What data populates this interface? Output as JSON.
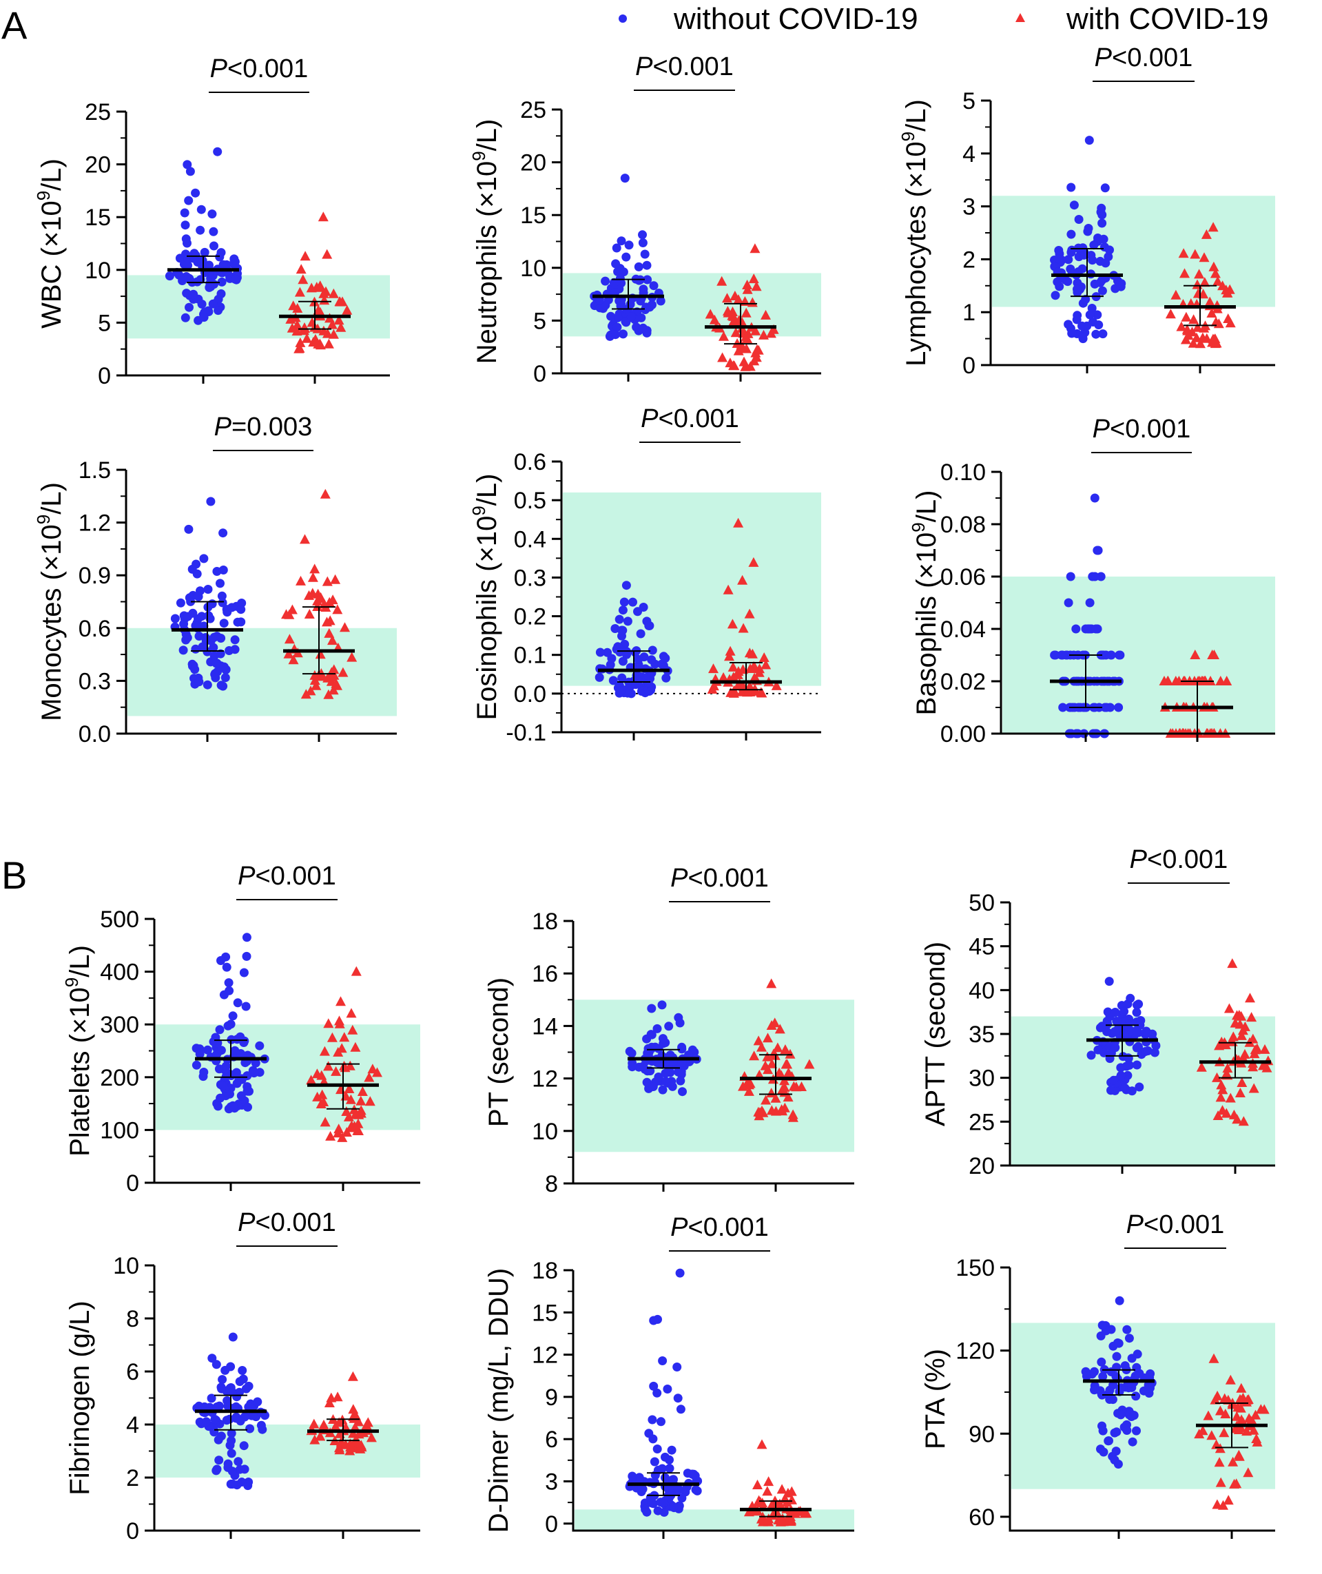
{
  "figure": {
    "panel_labels": [
      "A",
      "B"
    ],
    "legend": [
      {
        "label": "without COVID-19",
        "color": "#2b2bf0",
        "marker": "circle"
      },
      {
        "label": "with COVID-19",
        "color": "#f03030",
        "marker": "triangle"
      }
    ],
    "reference_band_color": "#c8f5e4"
  },
  "chart_data": [
    {
      "type": "scatter",
      "title": "WBC",
      "ylabel": "WBC (×10^9/L)",
      "ylabel_parts": [
        "WBC (×10",
        "9",
        "/L)"
      ],
      "ylim": [
        0,
        25
      ],
      "yticks": [
        0,
        5,
        10,
        15,
        20,
        25
      ],
      "tick_labels": [
        "0",
        "5",
        "10",
        "15",
        "20",
        "25"
      ],
      "reference_range": [
        3.5,
        9.5
      ],
      "p_label": "P",
      "p_value": "<0.001",
      "zero_line": false,
      "groups": [
        {
          "name": "without COVID-19",
          "n": 90,
          "min": 5.2,
          "max": 21.2,
          "median": 10.0,
          "q1": 8.8,
          "q3": 11.3
        },
        {
          "name": "with COVID-19",
          "n": 55,
          "min": 2.5,
          "max": 15.0,
          "median": 5.6,
          "q1": 4.4,
          "q3": 7.0
        }
      ]
    },
    {
      "type": "scatter",
      "title": "Neutrophils",
      "ylabel": "Neutrophils (×10^9/L)",
      "ylabel_parts": [
        "Neutrophils (×10",
        "9",
        "/L)"
      ],
      "ylim": [
        0,
        25
      ],
      "yticks": [
        0,
        5,
        10,
        15,
        20,
        25
      ],
      "tick_labels": [
        "0",
        "5",
        "10",
        "15",
        "20",
        "25"
      ],
      "reference_range": [
        3.5,
        9.5
      ],
      "p_label": "P",
      "p_value": "<0.001",
      "zero_line": false,
      "groups": [
        {
          "name": "without COVID-19",
          "n": 90,
          "min": 3.5,
          "max": 18.5,
          "median": 7.3,
          "q1": 6.1,
          "q3": 8.9
        },
        {
          "name": "with COVID-19",
          "n": 55,
          "min": 0.6,
          "max": 11.8,
          "median": 4.4,
          "q1": 2.8,
          "q3": 6.6
        }
      ]
    },
    {
      "type": "scatter",
      "title": "Lymphocytes",
      "ylabel": "Lymphocytes (×10^9/L)",
      "ylabel_parts": [
        "Lymphocytes (×10",
        "9",
        "/L)"
      ],
      "ylim": [
        0,
        5
      ],
      "yticks": [
        0,
        1,
        2,
        3,
        4,
        5
      ],
      "tick_labels": [
        "0",
        "1",
        "2",
        "3",
        "4",
        "5"
      ],
      "reference_range": [
        1.1,
        3.2
      ],
      "p_label": "P",
      "p_value": "<0.001",
      "zero_line": false,
      "groups": [
        {
          "name": "without COVID-19",
          "n": 90,
          "min": 0.5,
          "max": 4.25,
          "median": 1.7,
          "q1": 1.3,
          "q3": 2.2
        },
        {
          "name": "with COVID-19",
          "n": 55,
          "min": 0.4,
          "max": 2.6,
          "median": 1.1,
          "q1": 0.75,
          "q3": 1.5
        }
      ]
    },
    {
      "type": "scatter",
      "title": "Monocytes",
      "ylabel": "Monocytes (×10^9/L)",
      "ylabel_parts": [
        "Monocytes (×10",
        "9",
        "/L)"
      ],
      "ylim": [
        0,
        1.5
      ],
      "yticks": [
        0,
        0.3,
        0.6,
        0.9,
        1.2,
        1.5
      ],
      "tick_labels": [
        "0.0",
        "0.3",
        "0.6",
        "0.9",
        "1.2",
        "1.5"
      ],
      "reference_range": [
        0.1,
        0.6
      ],
      "p_label": "P",
      "p_value": "=0.003",
      "zero_line": false,
      "groups": [
        {
          "name": "without COVID-19",
          "n": 90,
          "min": 0.27,
          "max": 1.32,
          "median": 0.59,
          "q1": 0.47,
          "q3": 0.75
        },
        {
          "name": "with COVID-19",
          "n": 55,
          "min": 0.22,
          "max": 1.36,
          "median": 0.47,
          "q1": 0.34,
          "q3": 0.72
        }
      ]
    },
    {
      "type": "scatter",
      "title": "Eosinophils",
      "ylabel": "Eosinophils (×10^9/L)",
      "ylabel_parts": [
        "Eosinophils (×10",
        "9",
        "/L)"
      ],
      "ylim": [
        -0.1,
        0.6
      ],
      "yticks": [
        -0.1,
        0,
        0.1,
        0.2,
        0.3,
        0.4,
        0.5,
        0.6
      ],
      "tick_labels": [
        "-0.1",
        "0.0",
        "0.1",
        "0.2",
        "0.3",
        "0.4",
        "0.5",
        "0.6"
      ],
      "reference_range": [
        0.02,
        0.52
      ],
      "p_label": "P",
      "p_value": "<0.001",
      "zero_line": true,
      "groups": [
        {
          "name": "without COVID-19",
          "n": 90,
          "min": 0.0,
          "max": 0.28,
          "median": 0.06,
          "q1": 0.03,
          "q3": 0.11
        },
        {
          "name": "with COVID-19",
          "n": 55,
          "min": 0.0,
          "max": 0.44,
          "median": 0.03,
          "q1": 0.01,
          "q3": 0.08
        }
      ]
    },
    {
      "type": "scatter",
      "title": "Basophils",
      "ylabel": "Basophils (×10^9/L)",
      "ylabel_parts": [
        "Basophils (×10",
        "9",
        "/L)"
      ],
      "ylim": [
        0,
        0.1
      ],
      "yticks": [
        0,
        0.02,
        0.04,
        0.06,
        0.08,
        0.1
      ],
      "tick_labels": [
        "0.00",
        "0.02",
        "0.04",
        "0.06",
        "0.08",
        "0.10"
      ],
      "reference_range": [
        0,
        0.06
      ],
      "p_label": "P",
      "p_value": "<0.001",
      "zero_line": false,
      "groups": [
        {
          "name": "without COVID-19",
          "n": 90,
          "min": 0.0,
          "max": 0.09,
          "median": 0.02,
          "q1": 0.01,
          "q3": 0.03,
          "step": 0.01
        },
        {
          "name": "with COVID-19",
          "n": 55,
          "min": 0.0,
          "max": 0.03,
          "median": 0.01,
          "q1": 0.0,
          "q3": 0.02,
          "step": 0.01
        }
      ]
    },
    {
      "type": "scatter",
      "title": "Platelets",
      "ylabel": "Platelets (×10^9/L)",
      "ylabel_parts": [
        "Platelets (×10",
        "9",
        "/L)"
      ],
      "ylim": [
        0,
        500
      ],
      "yticks": [
        0,
        100,
        200,
        300,
        400,
        500
      ],
      "tick_labels": [
        "0",
        "100",
        "200",
        "300",
        "400",
        "500"
      ],
      "reference_range": [
        100,
        300
      ],
      "p_label": "P",
      "p_value": "<0.001",
      "zero_line": false,
      "groups": [
        {
          "name": "without COVID-19",
          "n": 90,
          "min": 140,
          "max": 465,
          "median": 235,
          "q1": 200,
          "q3": 270
        },
        {
          "name": "with COVID-19",
          "n": 55,
          "min": 85,
          "max": 400,
          "median": 185,
          "q1": 140,
          "q3": 225
        }
      ]
    },
    {
      "type": "scatter",
      "title": "PT",
      "ylabel": "PT (second)",
      "ylabel_parts": [
        "PT (second)",
        "",
        ""
      ],
      "ylim": [
        8,
        18
      ],
      "yticks": [
        8,
        10,
        12,
        14,
        16,
        18
      ],
      "tick_labels": [
        "8",
        "10",
        "12",
        "14",
        "16",
        "18"
      ],
      "reference_range": [
        9.2,
        15.0
      ],
      "p_label": "P",
      "p_value": "<0.001",
      "zero_line": false,
      "groups": [
        {
          "name": "without COVID-19",
          "n": 90,
          "min": 11.5,
          "max": 14.8,
          "median": 12.75,
          "q1": 12.4,
          "q3": 13.1
        },
        {
          "name": "with COVID-19",
          "n": 55,
          "min": 10.5,
          "max": 15.6,
          "median": 12.0,
          "q1": 11.4,
          "q3": 12.9
        }
      ]
    },
    {
      "type": "scatter",
      "title": "APTT",
      "ylabel": "APTT (second)",
      "ylabel_parts": [
        "APTT (second)",
        "",
        ""
      ],
      "ylim": [
        20,
        50
      ],
      "yticks": [
        20,
        25,
        30,
        35,
        40,
        45,
        50
      ],
      "tick_labels": [
        "20",
        "25",
        "30",
        "35",
        "40",
        "45",
        "50"
      ],
      "reference_range": [
        20,
        37
      ],
      "p_label": "P",
      "p_value": "<0.001",
      "zero_line": false,
      "groups": [
        {
          "name": "without COVID-19",
          "n": 90,
          "min": 28.5,
          "max": 41.0,
          "median": 34.3,
          "q1": 32.5,
          "q3": 36.0
        },
        {
          "name": "with COVID-19",
          "n": 55,
          "min": 25.0,
          "max": 43.0,
          "median": 31.8,
          "q1": 30.0,
          "q3": 34.0
        }
      ]
    },
    {
      "type": "scatter",
      "title": "Fibrinogen",
      "ylabel": "Fibrinogen (g/L)",
      "ylabel_parts": [
        "Fibrinogen (g/L)",
        "",
        ""
      ],
      "ylim": [
        0,
        10
      ],
      "yticks": [
        0,
        2,
        4,
        6,
        8,
        10
      ],
      "tick_labels": [
        "0",
        "2",
        "4",
        "6",
        "8",
        "10"
      ],
      "reference_range": [
        2,
        4
      ],
      "p_label": "P",
      "p_value": "<0.001",
      "zero_line": false,
      "groups": [
        {
          "name": "without COVID-19",
          "n": 90,
          "min": 1.7,
          "max": 7.3,
          "median": 4.5,
          "q1": 3.8,
          "q3": 5.1
        },
        {
          "name": "with COVID-19",
          "n": 55,
          "min": 3.0,
          "max": 5.8,
          "median": 3.75,
          "q1": 3.4,
          "q3": 4.2
        }
      ]
    },
    {
      "type": "scatter",
      "title": "D-Dimer",
      "ylabel": "D-Dimer (mg/L, DDU)",
      "ylabel_parts": [
        "D-Dimer (mg/L, DDU)",
        "",
        ""
      ],
      "ylim": [
        -0.5,
        18
      ],
      "yticks": [
        0,
        3,
        6,
        9,
        12,
        15,
        18
      ],
      "tick_labels": [
        "0",
        "3",
        "6",
        "9",
        "12",
        "15",
        "18"
      ],
      "reference_range": [
        -0.5,
        1.0
      ],
      "p_label": "P",
      "p_value": "<0.001",
      "zero_line": false,
      "groups": [
        {
          "name": "without COVID-19",
          "n": 90,
          "min": 0.8,
          "max": 17.8,
          "median": 2.8,
          "q1": 2.0,
          "q3": 3.6
        },
        {
          "name": "with COVID-19",
          "n": 55,
          "min": 0.1,
          "max": 5.6,
          "median": 1.0,
          "q1": 0.5,
          "q3": 1.6
        }
      ]
    },
    {
      "type": "scatter",
      "title": "PTA",
      "ylabel": "PTA (%)",
      "ylabel_parts": [
        "PTA (%)",
        "",
        ""
      ],
      "ylim": [
        55,
        150
      ],
      "yticks": [
        60,
        90,
        120,
        150
      ],
      "tick_labels": [
        "60",
        "90",
        "120",
        "150"
      ],
      "reference_range": [
        70,
        130
      ],
      "p_label": "P",
      "p_value": "<0.001",
      "zero_line": false,
      "groups": [
        {
          "name": "without COVID-19",
          "n": 90,
          "min": 79,
          "max": 138,
          "median": 109,
          "q1": 104,
          "q3": 113
        },
        {
          "name": "with COVID-19",
          "n": 55,
          "min": 64,
          "max": 117,
          "median": 93,
          "q1": 85,
          "q3": 101
        }
      ]
    }
  ]
}
